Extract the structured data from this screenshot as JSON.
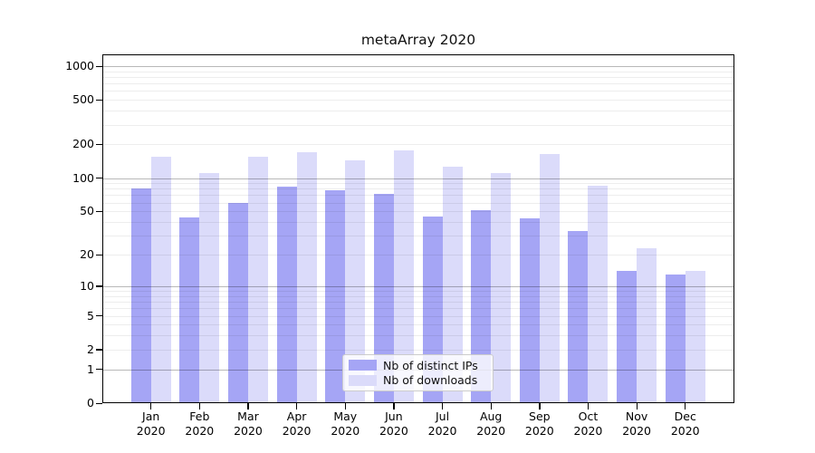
{
  "figure": {
    "title": "metaArray 2020"
  },
  "chart_data": {
    "type": "bar",
    "title": "metaArray 2020",
    "categories": [
      "Jan 2020",
      "Feb 2020",
      "Mar 2020",
      "Apr 2020",
      "May 2020",
      "Jun 2020",
      "Jul 2020",
      "Aug 2020",
      "Sep 2020",
      "Oct 2020",
      "Nov 2020",
      "Dec 2020"
    ],
    "series": [
      {
        "name": "Nb of distinct IPs",
        "color": "#a5a5f5",
        "values": [
          80,
          44,
          60,
          84,
          77,
          72,
          45,
          51,
          43,
          33,
          14,
          13
        ]
      },
      {
        "name": "Nb of downloads",
        "color": "#dbdbfa",
        "values": [
          156,
          110,
          156,
          169,
          144,
          178,
          126,
          111,
          164,
          85,
          23,
          14
        ]
      }
    ],
    "y_axis": {
      "scale": "symlog",
      "tick_labels": [
        "0",
        "1",
        "2",
        "5",
        "10",
        "20",
        "50",
        "100",
        "200",
        "500",
        "1000"
      ],
      "tick_values": [
        0,
        1,
        2,
        5,
        10,
        20,
        50,
        100,
        200,
        500,
        1000
      ],
      "range_top": 1280
    },
    "legend": {
      "position": "lower center",
      "entries": [
        "Nb of distinct IPs",
        "Nb of downloads"
      ]
    },
    "grid": {
      "major_values": [
        1,
        10,
        100,
        1000
      ],
      "minor_rule": "multiples 2-9 of each decade"
    },
    "colors": {
      "bar_distinct_ips": "#a5a5f5",
      "bar_downloads": "#dbdbfa",
      "major_grid": "rgba(0,0,0,0.28)",
      "minor_grid": "rgba(0,0,0,0.07)",
      "axis": "#000000",
      "legend_border": "#cccccc",
      "text": "#000000"
    }
  }
}
